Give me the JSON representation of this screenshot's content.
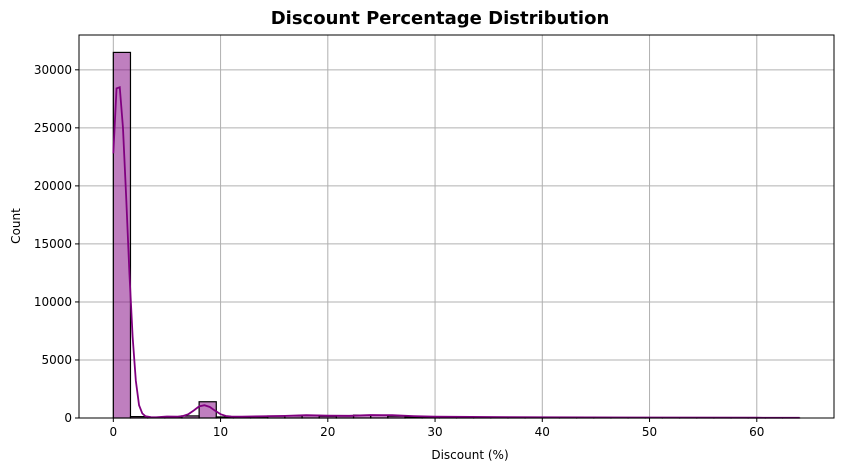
{
  "chart_data": {
    "type": "bar",
    "title": "Discount Percentage Distribution",
    "xlabel": "Discount (%)",
    "ylabel": "Count",
    "xlim": [
      -3.2,
      67.2
    ],
    "ylim": [
      0,
      33000
    ],
    "xticks": [
      0,
      10,
      20,
      30,
      40,
      50,
      60
    ],
    "yticks": [
      0,
      5000,
      10000,
      15000,
      20000,
      25000,
      30000
    ],
    "grid": true,
    "bar_color": "#800080",
    "bar_alpha": 0.5,
    "edge_color": "#000000",
    "bin_width": 1.6,
    "bins": [
      {
        "x0": 0.0,
        "x1": 1.6,
        "count": 31500
      },
      {
        "x0": 1.6,
        "x1": 3.2,
        "count": 120
      },
      {
        "x0": 3.2,
        "x1": 4.8,
        "count": 40
      },
      {
        "x0": 4.8,
        "x1": 6.4,
        "count": 110
      },
      {
        "x0": 6.4,
        "x1": 8.0,
        "count": 180
      },
      {
        "x0": 8.0,
        "x1": 9.6,
        "count": 1400
      },
      {
        "x0": 9.6,
        "x1": 11.2,
        "count": 90
      },
      {
        "x0": 11.2,
        "x1": 12.8,
        "count": 80
      },
      {
        "x0": 12.8,
        "x1": 14.4,
        "count": 110
      },
      {
        "x0": 14.4,
        "x1": 16.0,
        "count": 170
      },
      {
        "x0": 16.0,
        "x1": 17.6,
        "count": 190
      },
      {
        "x0": 17.6,
        "x1": 19.2,
        "count": 220
      },
      {
        "x0": 19.2,
        "x1": 20.8,
        "count": 150
      },
      {
        "x0": 20.8,
        "x1": 22.4,
        "count": 170
      },
      {
        "x0": 22.4,
        "x1": 24.0,
        "count": 250
      },
      {
        "x0": 24.0,
        "x1": 25.6,
        "count": 230
      },
      {
        "x0": 25.6,
        "x1": 27.2,
        "count": 160
      },
      {
        "x0": 27.2,
        "x1": 28.8,
        "count": 100
      },
      {
        "x0": 28.8,
        "x1": 30.4,
        "count": 90
      },
      {
        "x0": 30.4,
        "x1": 32.0,
        "count": 60
      },
      {
        "x0": 32.0,
        "x1": 33.6,
        "count": 50
      },
      {
        "x0": 33.6,
        "x1": 35.2,
        "count": 40
      },
      {
        "x0": 35.2,
        "x1": 36.8,
        "count": 30
      },
      {
        "x0": 36.8,
        "x1": 38.4,
        "count": 30
      },
      {
        "x0": 38.4,
        "x1": 40.0,
        "count": 20
      },
      {
        "x0": 40.0,
        "x1": 41.6,
        "count": 20
      },
      {
        "x0": 41.6,
        "x1": 43.2,
        "count": 15
      },
      {
        "x0": 43.2,
        "x1": 44.8,
        "count": 15
      },
      {
        "x0": 44.8,
        "x1": 46.4,
        "count": 10
      },
      {
        "x0": 46.4,
        "x1": 48.0,
        "count": 10
      },
      {
        "x0": 48.0,
        "x1": 49.6,
        "count": 10
      },
      {
        "x0": 49.6,
        "x1": 51.2,
        "count": 8
      },
      {
        "x0": 51.2,
        "x1": 52.8,
        "count": 5
      },
      {
        "x0": 52.8,
        "x1": 54.4,
        "count": 5
      },
      {
        "x0": 54.4,
        "x1": 56.0,
        "count": 5
      },
      {
        "x0": 56.0,
        "x1": 57.6,
        "count": 5
      },
      {
        "x0": 57.6,
        "x1": 59.2,
        "count": 3
      },
      {
        "x0": 59.2,
        "x1": 60.8,
        "count": 3
      },
      {
        "x0": 60.8,
        "x1": 62.4,
        "count": 2
      },
      {
        "x0": 62.4,
        "x1": 64.0,
        "count": 2
      }
    ],
    "kde": {
      "color": "#800080",
      "x": [
        0,
        0.3,
        0.6,
        0.9,
        1.2,
        1.5,
        1.8,
        2.1,
        2.4,
        2.7,
        3.0,
        3.5,
        4.0,
        5.0,
        6.0,
        6.5,
        7.0,
        7.5,
        8.0,
        8.5,
        9.0,
        9.5,
        10.0,
        10.5,
        11.0,
        12.0,
        14.0,
        16.0,
        18.0,
        20.0,
        22.0,
        24.0,
        26.0,
        28.0,
        30.0,
        35.0,
        40.0,
        50.0,
        60.0,
        64.0
      ],
      "y": [
        22800,
        28400,
        28500,
        25000,
        19000,
        12500,
        7000,
        3200,
        1100,
        400,
        150,
        70,
        60,
        130,
        120,
        170,
        330,
        650,
        1000,
        1100,
        950,
        620,
        330,
        170,
        130,
        120,
        150,
        180,
        240,
        200,
        190,
        260,
        240,
        160,
        120,
        80,
        60,
        40,
        25,
        20
      ]
    }
  }
}
